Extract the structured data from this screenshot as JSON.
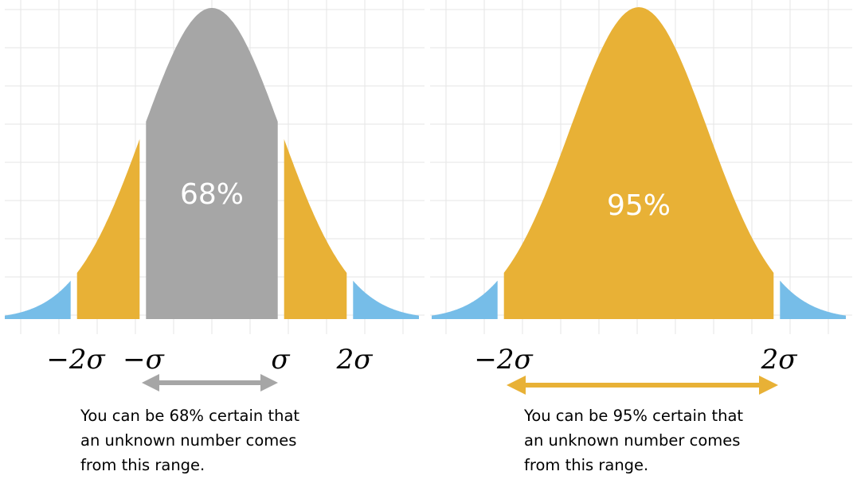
{
  "colors": {
    "gray": "#a6a6a6",
    "orange": "#e8b136",
    "blue": "#76bde8",
    "grid": "#e6e6e6",
    "label_white": "#ffffff"
  },
  "chart_data": [
    {
      "type": "area",
      "distribution": "normal",
      "x_range": [
        -3,
        3
      ],
      "grid": true,
      "regions": [
        {
          "from": -3,
          "to": -2,
          "color": "blue"
        },
        {
          "from": -2,
          "to": -1,
          "color": "orange"
        },
        {
          "from": -1,
          "to": 1,
          "color": "gray",
          "label": "68%"
        },
        {
          "from": 1,
          "to": 2,
          "color": "orange"
        },
        {
          "from": 2,
          "to": 3,
          "color": "blue"
        }
      ],
      "tick_labels": [
        "−2σ",
        "−σ",
        "σ",
        "2σ"
      ],
      "range_arrow": {
        "from": -1,
        "to": 1,
        "color": "gray"
      },
      "caption": [
        "You can be 68% certain that",
        "an unknown number comes",
        "from this range."
      ]
    },
    {
      "type": "area",
      "distribution": "normal",
      "x_range": [
        -3,
        3
      ],
      "grid": true,
      "regions": [
        {
          "from": -3,
          "to": -2,
          "color": "blue"
        },
        {
          "from": -2,
          "to": 2,
          "color": "orange",
          "label": "95%"
        },
        {
          "from": 2,
          "to": 3,
          "color": "blue"
        }
      ],
      "tick_labels": [
        "−2σ",
        "2σ"
      ],
      "range_arrow": {
        "from": -2,
        "to": 2,
        "color": "orange"
      },
      "caption": [
        "You can be 95% certain that",
        "an unknown number comes",
        "from this range."
      ]
    }
  ]
}
